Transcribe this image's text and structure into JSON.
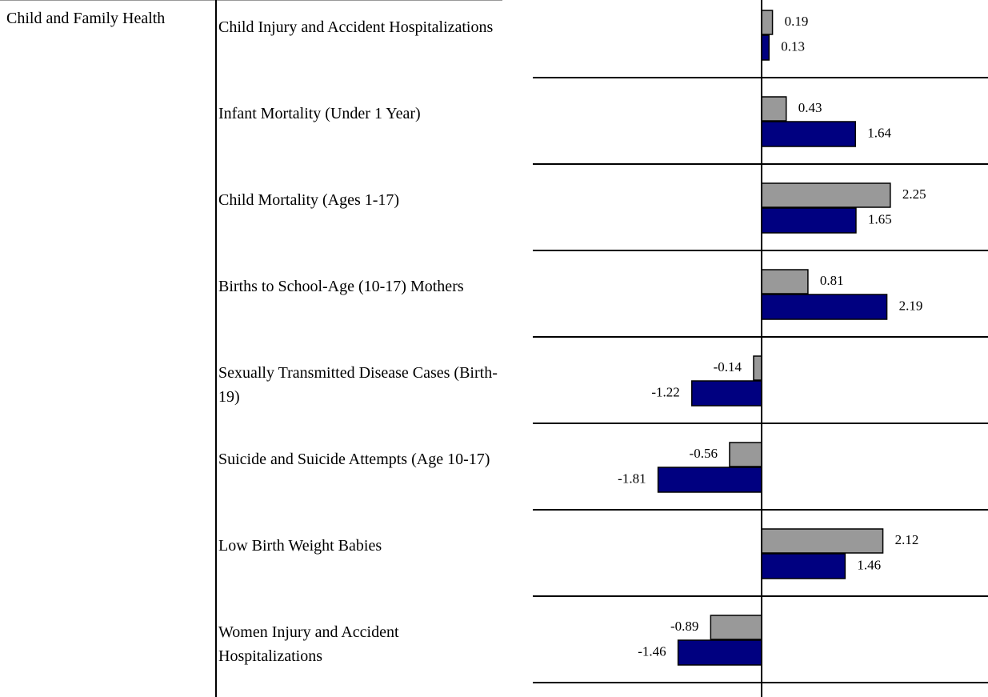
{
  "chart_data": {
    "type": "bar",
    "orientation": "horizontal",
    "group_label": "Child and Family Health",
    "categories": [
      "Child Injury and Accident Hospitalizations",
      "Infant Mortality (Under 1 Year)",
      "Child Mortality (Ages 1-17)",
      "Births to School-Age (10-17) Mothers",
      "Sexually Transmitted Disease Cases (Birth-19)",
      "Suicide and Suicide Attempts (Age 10-17)",
      "Low Birth Weight Babies",
      "Women Injury and Accident Hospitalizations"
    ],
    "series": [
      {
        "color": "#999999",
        "values": [
          0.19,
          0.43,
          2.25,
          0.81,
          -0.14,
          -0.56,
          2.12,
          -0.89
        ]
      },
      {
        "color": "#000080",
        "values": [
          0.13,
          1.64,
          1.65,
          2.19,
          -1.22,
          -1.81,
          1.46,
          -1.46
        ]
      }
    ],
    "xlim": [
      -4,
      4
    ]
  }
}
